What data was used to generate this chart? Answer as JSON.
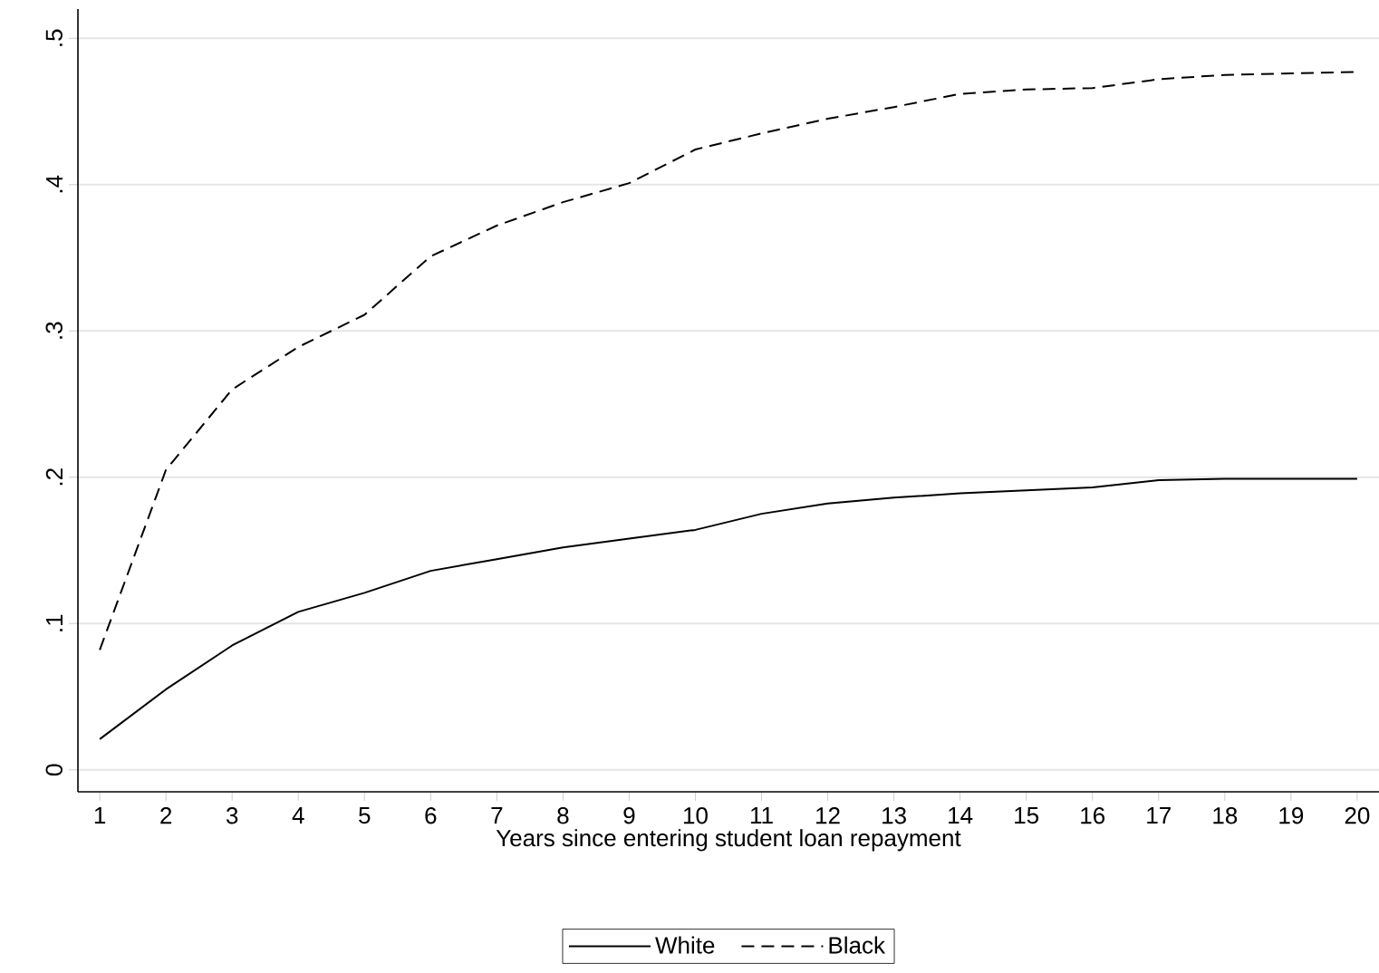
{
  "chart_data": {
    "type": "line",
    "xlabel": "Years since entering student loan repayment",
    "x": [
      1,
      2,
      3,
      4,
      5,
      6,
      7,
      8,
      9,
      10,
      11,
      12,
      13,
      14,
      15,
      16,
      17,
      18,
      19,
      20
    ],
    "series": [
      {
        "name": "White",
        "color": "#000000",
        "line_style": "solid",
        "values": [
          0.021,
          0.055,
          0.085,
          0.108,
          0.121,
          0.136,
          0.144,
          0.152,
          0.158,
          0.164,
          0.175,
          0.182,
          0.186,
          0.189,
          0.191,
          0.193,
          0.198,
          0.199,
          0.199,
          0.199
        ]
      },
      {
        "name": "Black",
        "color": "#000000",
        "line_style": "dashed",
        "values": [
          0.082,
          0.205,
          0.26,
          0.289,
          0.311,
          0.351,
          0.372,
          0.388,
          0.401,
          0.424,
          0.435,
          0.445,
          0.453,
          0.462,
          0.465,
          0.466,
          0.472,
          0.475,
          0.476,
          0.477
        ]
      }
    ],
    "xlim": [
      0.67,
      20.33
    ],
    "ylim": [
      -0.015,
      0.52
    ],
    "xticks": [
      1,
      2,
      3,
      4,
      5,
      6,
      7,
      8,
      9,
      10,
      11,
      12,
      13,
      14,
      15,
      16,
      17,
      18,
      19,
      20
    ],
    "yticks": [
      {
        "value": 0,
        "label": "0"
      },
      {
        "value": 0.1,
        "label": ".1"
      },
      {
        "value": 0.2,
        "label": ".2"
      },
      {
        "value": 0.3,
        "label": ".3"
      },
      {
        "value": 0.4,
        "label": ".4"
      },
      {
        "value": 0.5,
        "label": ".5"
      }
    ],
    "grid": "y",
    "legend": "bottom",
    "marker": "none"
  }
}
